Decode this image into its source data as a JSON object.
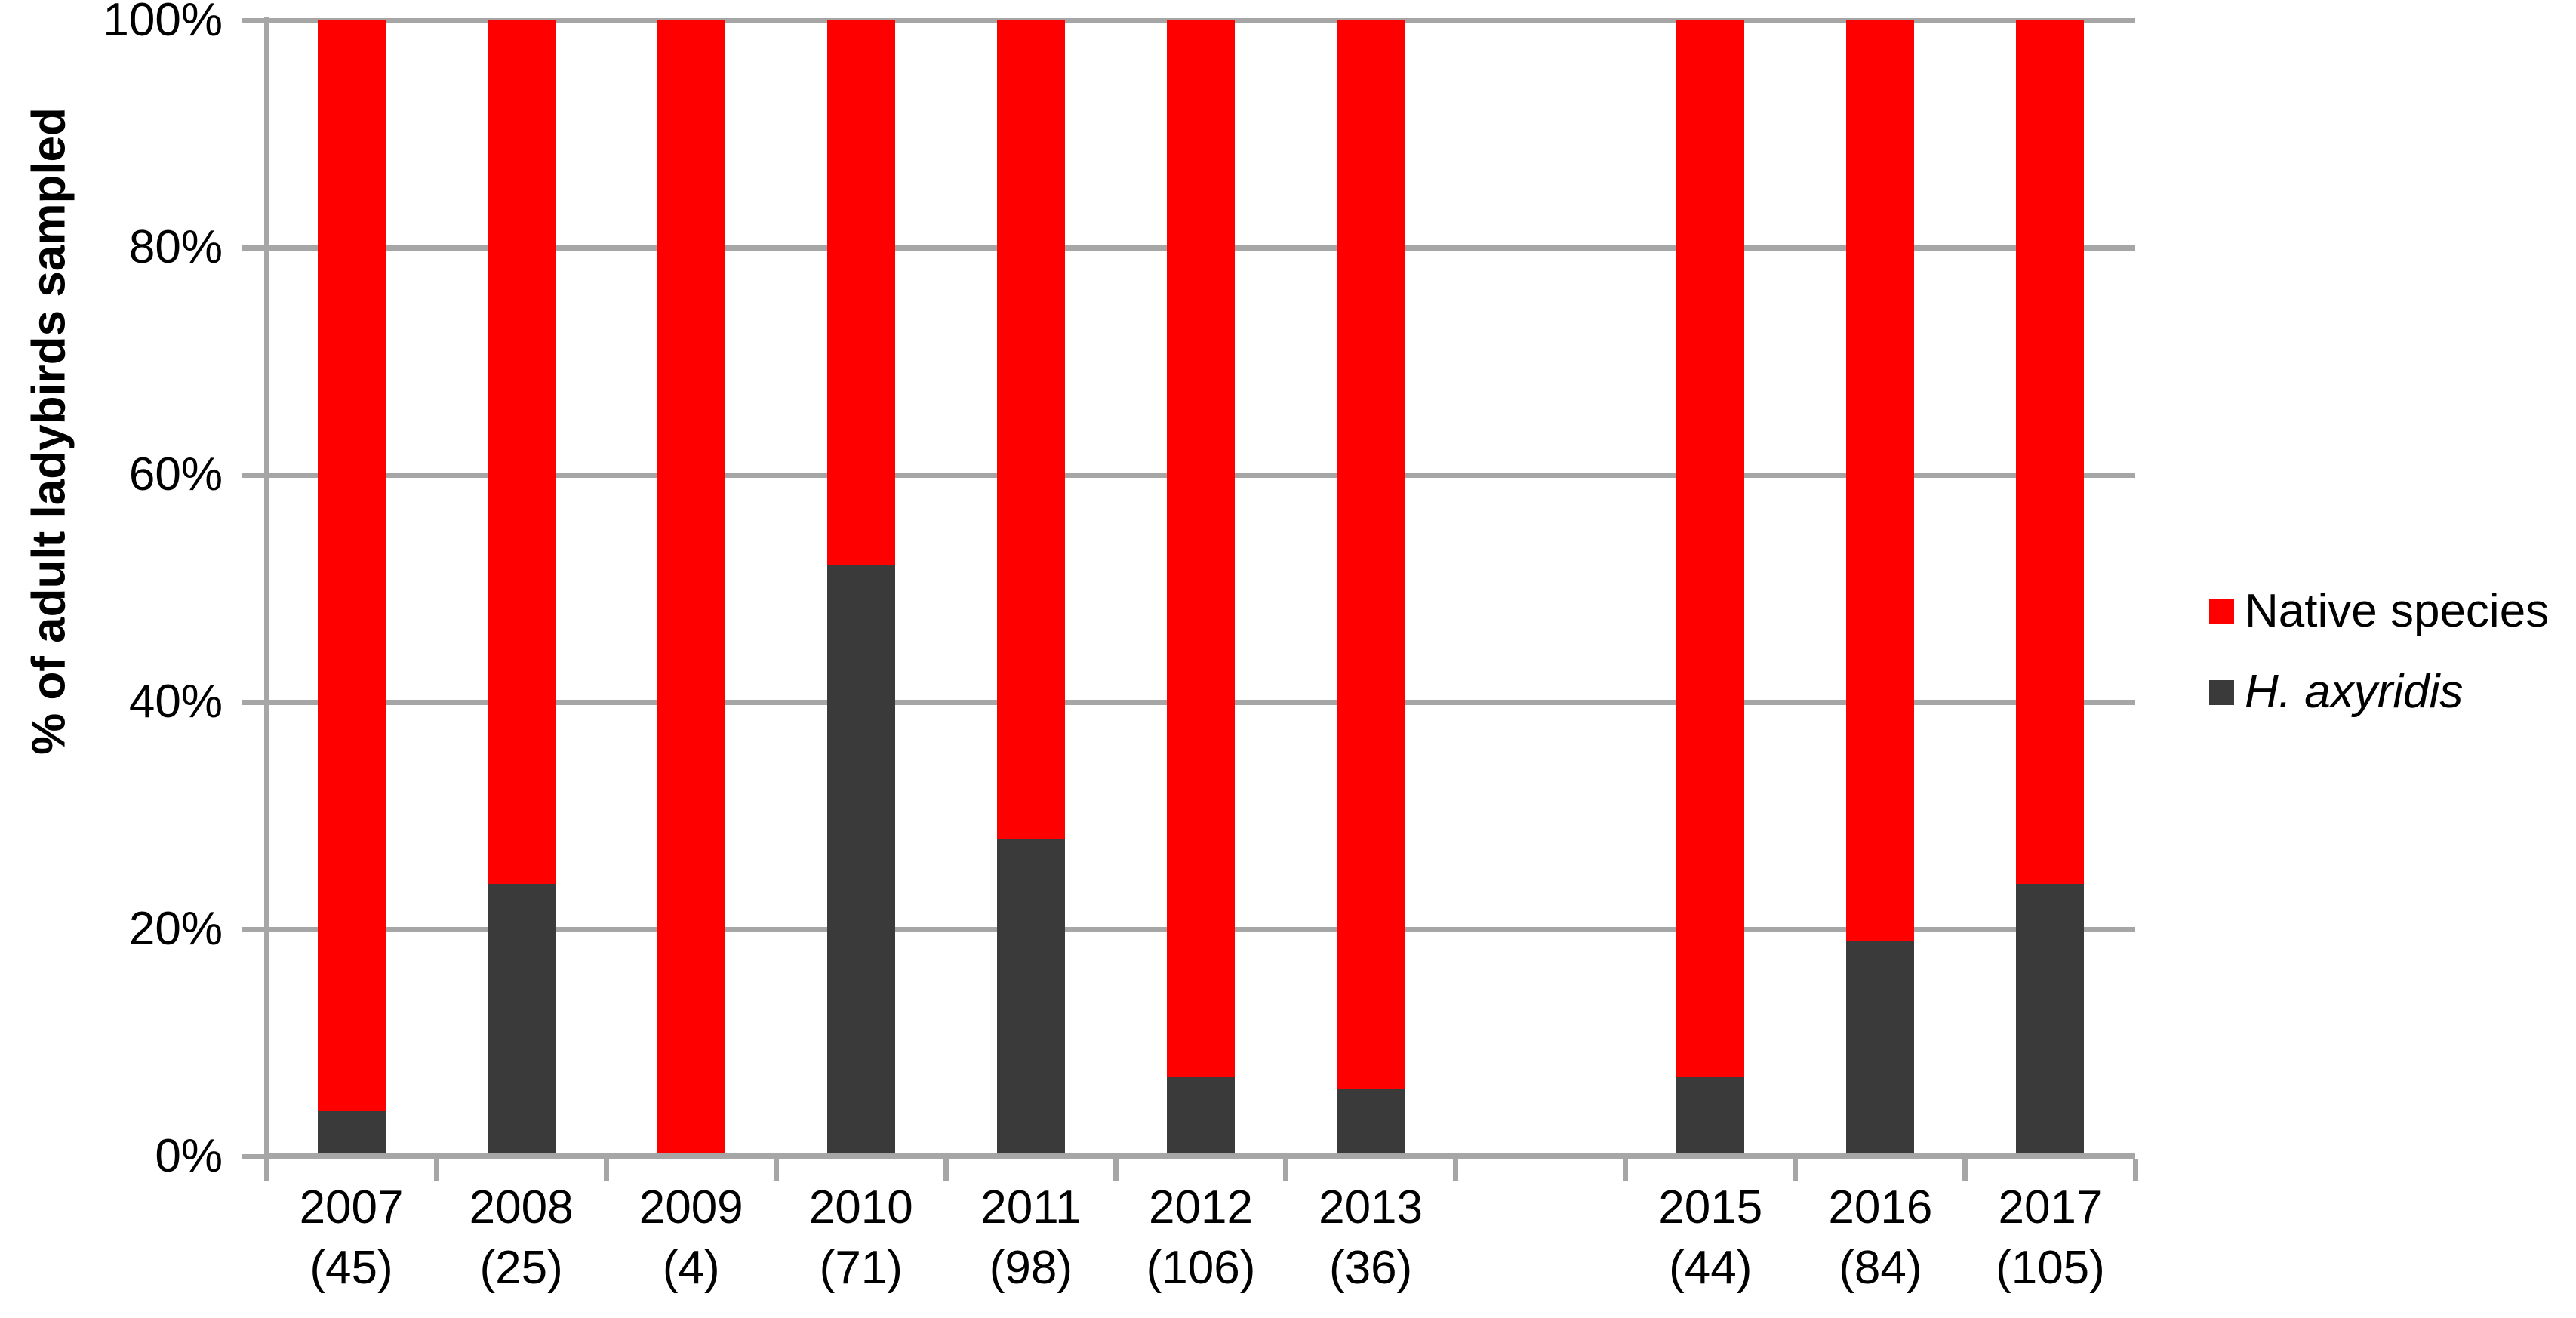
{
  "chart_data": {
    "type": "bar",
    "stacked_percent": true,
    "x_labels": [
      "2007",
      "2008",
      "2009",
      "2010",
      "2011",
      "2012",
      "2013",
      "",
      "2015",
      "2016",
      "2017"
    ],
    "sample_labels": [
      "(45)",
      "(25)",
      "(4)",
      "(71)",
      "(98)",
      "(106)",
      "(36)",
      "",
      "(44)",
      "(84)",
      "(105)"
    ],
    "y_ticks": [
      "0%",
      "20%",
      "40%",
      "60%",
      "80%",
      "100%"
    ],
    "ylabel": "% of adult ladybirds sampled",
    "ylim": [
      0,
      100
    ],
    "grid": true,
    "legend_position": "right-middle",
    "series": [
      {
        "name": "Native species",
        "color": "#FF0000",
        "italic": false,
        "values": [
          96,
          76,
          100,
          48,
          72,
          93,
          94,
          null,
          93,
          81,
          76
        ]
      },
      {
        "name": "H. axyridis",
        "color": "#3A3A3A",
        "italic": true,
        "values": [
          4,
          24,
          0,
          52,
          28,
          7,
          6,
          null,
          7,
          19,
          24
        ]
      }
    ],
    "axis_color": "#A6A6A6",
    "gridline_color": "#A6A6A6",
    "text_color": "#000000"
  }
}
